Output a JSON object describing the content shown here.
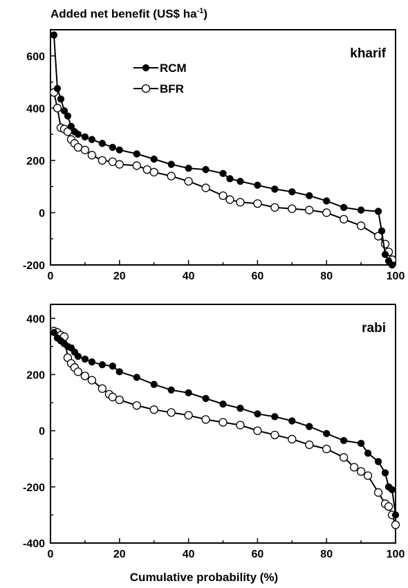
{
  "y_axis_label_prefix": "Added net benefit (US$ ha",
  "y_axis_label_sup": "-1",
  "y_axis_label_suffix": ")",
  "x_axis_label": "Cumulative probability (%)",
  "chart_data": [
    {
      "type": "line",
      "panel_label": "kharif",
      "xlim": [
        0,
        100
      ],
      "ylim": [
        -200,
        700
      ],
      "xticks": [
        0,
        20,
        40,
        60,
        80,
        100
      ],
      "yticks": [
        -200,
        0,
        200,
        400,
        600
      ],
      "legend_position": "top-left",
      "series": [
        {
          "name": "RCM",
          "marker": "filled-circle",
          "color": "#000000",
          "x": [
            1,
            2,
            3,
            4,
            5,
            6,
            7,
            8,
            10,
            12,
            15,
            18,
            20,
            25,
            30,
            35,
            40,
            45,
            50,
            52,
            55,
            60,
            65,
            70,
            75,
            80,
            85,
            90,
            95,
            96,
            97,
            98,
            99
          ],
          "y": [
            680,
            475,
            435,
            390,
            370,
            330,
            310,
            300,
            290,
            280,
            265,
            250,
            240,
            225,
            205,
            185,
            170,
            165,
            150,
            130,
            120,
            105,
            90,
            80,
            65,
            45,
            20,
            10,
            5,
            -70,
            -160,
            -185,
            -200
          ]
        },
        {
          "name": "BFR",
          "marker": "open-circle",
          "color": "#000000",
          "x": [
            1,
            2,
            3,
            4,
            5,
            6,
            7,
            8,
            10,
            12,
            15,
            18,
            20,
            25,
            28,
            30,
            35,
            40,
            45,
            50,
            52,
            55,
            60,
            65,
            70,
            75,
            80,
            85,
            90,
            95,
            97,
            98,
            99
          ],
          "y": [
            460,
            400,
            325,
            320,
            310,
            280,
            265,
            250,
            240,
            220,
            200,
            195,
            185,
            180,
            165,
            155,
            140,
            120,
            95,
            65,
            50,
            40,
            35,
            20,
            15,
            10,
            0,
            -25,
            -50,
            -90,
            -120,
            -150,
            -180
          ]
        }
      ]
    },
    {
      "type": "line",
      "panel_label": "rabi",
      "xlim": [
        0,
        100
      ],
      "ylim": [
        -400,
        450
      ],
      "xticks": [
        0,
        20,
        40,
        60,
        80,
        100
      ],
      "yticks": [
        -400,
        -200,
        0,
        200,
        400
      ],
      "series": [
        {
          "name": "RCM",
          "marker": "filled-circle",
          "color": "#000000",
          "x": [
            1,
            2,
            3,
            4,
            5,
            6,
            7,
            8,
            10,
            12,
            15,
            18,
            20,
            25,
            30,
            35,
            40,
            45,
            50,
            55,
            60,
            65,
            70,
            75,
            80,
            85,
            90,
            92,
            95,
            97,
            98,
            99,
            100
          ],
          "y": [
            350,
            330,
            320,
            310,
            300,
            295,
            280,
            265,
            255,
            245,
            235,
            230,
            210,
            190,
            165,
            145,
            135,
            115,
            95,
            80,
            60,
            50,
            35,
            15,
            -10,
            -35,
            -45,
            -80,
            -110,
            -150,
            -200,
            -210,
            -300
          ]
        },
        {
          "name": "BFR",
          "marker": "open-circle",
          "color": "#000000",
          "x": [
            1,
            2,
            3,
            4,
            5,
            6,
            7,
            8,
            10,
            12,
            15,
            17,
            18,
            20,
            25,
            30,
            35,
            40,
            45,
            50,
            55,
            60,
            65,
            70,
            75,
            80,
            85,
            88,
            90,
            92,
            95,
            97,
            98,
            99,
            100
          ],
          "y": [
            355,
            350,
            340,
            335,
            260,
            240,
            225,
            210,
            195,
            180,
            150,
            130,
            120,
            110,
            90,
            75,
            65,
            55,
            40,
            30,
            20,
            0,
            -15,
            -30,
            -50,
            -65,
            -95,
            -130,
            -145,
            -160,
            -220,
            -260,
            -270,
            -300,
            -335
          ]
        }
      ]
    }
  ]
}
